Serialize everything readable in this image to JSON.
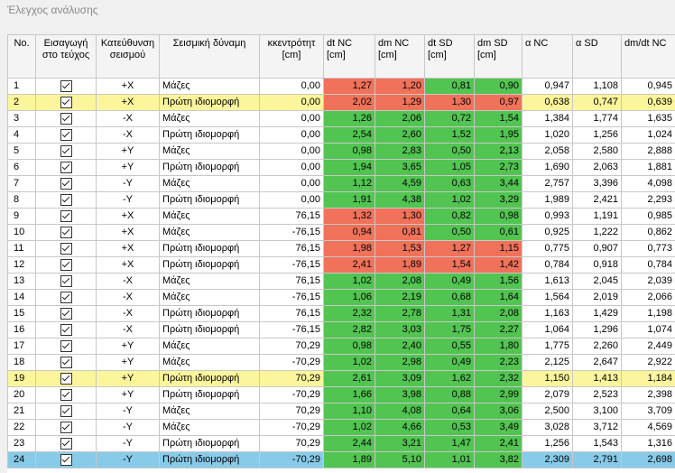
{
  "window_title": "Έλεγχος ανάλυσης",
  "colors": {
    "green": "#52c451",
    "red": "#f0725a",
    "highlight_yellow": "#fbf59b",
    "selected_blue": "#88cbe8"
  },
  "columns": [
    "No.",
    "Εισαγωγή στο τεύχος",
    "Κατεύθυνση σεισμού",
    "Σεισμική δύναμη",
    "κκεντρότητ [cm]",
    "dt NC [cm]",
    "dm NC [cm]",
    "dt SD [cm]",
    "dm SD [cm]",
    "α NC",
    "α SD",
    "dm/dt NC"
  ],
  "rows": [
    {
      "no": "1",
      "checked": true,
      "dir": "+X",
      "force": "Μάζες",
      "ecc": "0,00",
      "dt_nc": "1,27",
      "dm_nc": "1,20",
      "dt_sd": "0,81",
      "dm_sd": "0,90",
      "a_nc": "0,947",
      "a_sd": "1,108",
      "ratio": "0,945",
      "colors": [
        "r",
        "r",
        "g",
        "g"
      ],
      "row": ""
    },
    {
      "no": "2",
      "checked": true,
      "dir": "+X",
      "force": "Πρώτη ιδιομορφή",
      "ecc": "0,00",
      "dt_nc": "2,02",
      "dm_nc": "1,29",
      "dt_sd": "1,30",
      "dm_sd": "0,97",
      "a_nc": "0,638",
      "a_sd": "0,747",
      "ratio": "0,639",
      "colors": [
        "r",
        "r",
        "r",
        "r"
      ],
      "row": "yellow"
    },
    {
      "no": "3",
      "checked": true,
      "dir": "-X",
      "force": "Μάζες",
      "ecc": "0,00",
      "dt_nc": "1,26",
      "dm_nc": "2,06",
      "dt_sd": "0,72",
      "dm_sd": "1,54",
      "a_nc": "1,384",
      "a_sd": "1,774",
      "ratio": "1,635",
      "colors": [
        "g",
        "g",
        "g",
        "g"
      ],
      "row": ""
    },
    {
      "no": "4",
      "checked": true,
      "dir": "-X",
      "force": "Πρώτη ιδιομορφή",
      "ecc": "0,00",
      "dt_nc": "2,54",
      "dm_nc": "2,60",
      "dt_sd": "1,52",
      "dm_sd": "1,95",
      "a_nc": "1,020",
      "a_sd": "1,256",
      "ratio": "1,024",
      "colors": [
        "g",
        "g",
        "g",
        "g"
      ],
      "row": ""
    },
    {
      "no": "5",
      "checked": true,
      "dir": "+Y",
      "force": "Μάζες",
      "ecc": "0,00",
      "dt_nc": "0,98",
      "dm_nc": "2,83",
      "dt_sd": "0,50",
      "dm_sd": "2,13",
      "a_nc": "2,058",
      "a_sd": "2,580",
      "ratio": "2,888",
      "colors": [
        "g",
        "g",
        "g",
        "g"
      ],
      "row": ""
    },
    {
      "no": "6",
      "checked": true,
      "dir": "+Y",
      "force": "Πρώτη ιδιομορφή",
      "ecc": "0,00",
      "dt_nc": "1,94",
      "dm_nc": "3,65",
      "dt_sd": "1,05",
      "dm_sd": "2,73",
      "a_nc": "1,690",
      "a_sd": "2,063",
      "ratio": "1,881",
      "colors": [
        "g",
        "g",
        "g",
        "g"
      ],
      "row": ""
    },
    {
      "no": "7",
      "checked": true,
      "dir": "-Y",
      "force": "Μάζες",
      "ecc": "0,00",
      "dt_nc": "1,12",
      "dm_nc": "4,59",
      "dt_sd": "0,63",
      "dm_sd": "3,44",
      "a_nc": "2,757",
      "a_sd": "3,396",
      "ratio": "4,098",
      "colors": [
        "g",
        "g",
        "g",
        "g"
      ],
      "row": ""
    },
    {
      "no": "8",
      "checked": true,
      "dir": "-Y",
      "force": "Πρώτη ιδιομορφή",
      "ecc": "0,00",
      "dt_nc": "1,91",
      "dm_nc": "4,38",
      "dt_sd": "1,02",
      "dm_sd": "3,29",
      "a_nc": "1,989",
      "a_sd": "2,421",
      "ratio": "2,293",
      "colors": [
        "g",
        "g",
        "g",
        "g"
      ],
      "row": ""
    },
    {
      "no": "9",
      "checked": true,
      "dir": "+X",
      "force": "Μάζες",
      "ecc": "76,15",
      "dt_nc": "1,32",
      "dm_nc": "1,30",
      "dt_sd": "0,82",
      "dm_sd": "0,98",
      "a_nc": "0,993",
      "a_sd": "1,191",
      "ratio": "0,985",
      "colors": [
        "r",
        "r",
        "g",
        "g"
      ],
      "row": ""
    },
    {
      "no": "10",
      "checked": true,
      "dir": "+X",
      "force": "Μάζες",
      "ecc": "-76,15",
      "dt_nc": "0,94",
      "dm_nc": "0,81",
      "dt_sd": "0,50",
      "dm_sd": "0,61",
      "a_nc": "0,925",
      "a_sd": "1,222",
      "ratio": "0,862",
      "colors": [
        "r",
        "r",
        "g",
        "g"
      ],
      "row": ""
    },
    {
      "no": "11",
      "checked": true,
      "dir": "+X",
      "force": "Πρώτη ιδιομορφή",
      "ecc": "76,15",
      "dt_nc": "1,98",
      "dm_nc": "1,53",
      "dt_sd": "1,27",
      "dm_sd": "1,15",
      "a_nc": "0,775",
      "a_sd": "0,907",
      "ratio": "0,773",
      "colors": [
        "r",
        "r",
        "r",
        "r"
      ],
      "row": ""
    },
    {
      "no": "12",
      "checked": true,
      "dir": "+X",
      "force": "Πρώτη ιδιομορφή",
      "ecc": "-76,15",
      "dt_nc": "2,41",
      "dm_nc": "1,89",
      "dt_sd": "1,54",
      "dm_sd": "1,42",
      "a_nc": "0,784",
      "a_sd": "0,918",
      "ratio": "0,784",
      "colors": [
        "r",
        "r",
        "r",
        "r"
      ],
      "row": ""
    },
    {
      "no": "13",
      "checked": true,
      "dir": "-X",
      "force": "Μάζες",
      "ecc": "76,15",
      "dt_nc": "1,02",
      "dm_nc": "2,08",
      "dt_sd": "0,49",
      "dm_sd": "1,56",
      "a_nc": "1,613",
      "a_sd": "2,045",
      "ratio": "2,039",
      "colors": [
        "g",
        "g",
        "g",
        "g"
      ],
      "row": ""
    },
    {
      "no": "14",
      "checked": true,
      "dir": "-X",
      "force": "Μάζες",
      "ecc": "-76,15",
      "dt_nc": "1,06",
      "dm_nc": "2,19",
      "dt_sd": "0,68",
      "dm_sd": "1,64",
      "a_nc": "1,564",
      "a_sd": "2,019",
      "ratio": "2,066",
      "colors": [
        "g",
        "g",
        "g",
        "g"
      ],
      "row": ""
    },
    {
      "no": "15",
      "checked": true,
      "dir": "-X",
      "force": "Πρώτη ιδιομορφή",
      "ecc": "76,15",
      "dt_nc": "2,32",
      "dm_nc": "2,78",
      "dt_sd": "1,31",
      "dm_sd": "2,08",
      "a_nc": "1,163",
      "a_sd": "1,429",
      "ratio": "1,198",
      "colors": [
        "g",
        "g",
        "g",
        "g"
      ],
      "row": ""
    },
    {
      "no": "16",
      "checked": true,
      "dir": "-X",
      "force": "Πρώτη ιδιομορφή",
      "ecc": "-76,15",
      "dt_nc": "2,82",
      "dm_nc": "3,03",
      "dt_sd": "1,75",
      "dm_sd": "2,27",
      "a_nc": "1,064",
      "a_sd": "1,296",
      "ratio": "1,074",
      "colors": [
        "g",
        "g",
        "g",
        "g"
      ],
      "row": ""
    },
    {
      "no": "17",
      "checked": true,
      "dir": "+Y",
      "force": "Μάζες",
      "ecc": "70,29",
      "dt_nc": "0,98",
      "dm_nc": "2,40",
      "dt_sd": "0,55",
      "dm_sd": "1,80",
      "a_nc": "1,775",
      "a_sd": "2,260",
      "ratio": "2,449",
      "colors": [
        "g",
        "g",
        "g",
        "g"
      ],
      "row": ""
    },
    {
      "no": "18",
      "checked": true,
      "dir": "+Y",
      "force": "Μάζες",
      "ecc": "-70,29",
      "dt_nc": "1,02",
      "dm_nc": "2,98",
      "dt_sd": "0,49",
      "dm_sd": "2,23",
      "a_nc": "2,125",
      "a_sd": "2,647",
      "ratio": "2,922",
      "colors": [
        "g",
        "g",
        "g",
        "g"
      ],
      "row": ""
    },
    {
      "no": "19",
      "checked": true,
      "dir": "+Y",
      "force": "Πρώτη ιδιομορφή",
      "ecc": "70,29",
      "dt_nc": "2,61",
      "dm_nc": "3,09",
      "dt_sd": "1,62",
      "dm_sd": "2,32",
      "a_nc": "1,150",
      "a_sd": "1,413",
      "ratio": "1,184",
      "colors": [
        "g",
        "g",
        "g",
        "g"
      ],
      "row": "yellow"
    },
    {
      "no": "20",
      "checked": true,
      "dir": "+Y",
      "force": "Πρώτη ιδιομορφή",
      "ecc": "-70,29",
      "dt_nc": "1,66",
      "dm_nc": "3,98",
      "dt_sd": "0,88",
      "dm_sd": "2,99",
      "a_nc": "2,079",
      "a_sd": "2,523",
      "ratio": "2,398",
      "colors": [
        "g",
        "g",
        "g",
        "g"
      ],
      "row": ""
    },
    {
      "no": "21",
      "checked": true,
      "dir": "-Y",
      "force": "Μάζες",
      "ecc": "70,29",
      "dt_nc": "1,10",
      "dm_nc": "4,08",
      "dt_sd": "0,64",
      "dm_sd": "3,06",
      "a_nc": "2,500",
      "a_sd": "3,100",
      "ratio": "3,709",
      "colors": [
        "g",
        "g",
        "g",
        "g"
      ],
      "row": ""
    },
    {
      "no": "22",
      "checked": true,
      "dir": "-Y",
      "force": "Μάζες",
      "ecc": "-70,29",
      "dt_nc": "1,02",
      "dm_nc": "4,66",
      "dt_sd": "0,53",
      "dm_sd": "3,49",
      "a_nc": "3,028",
      "a_sd": "3,712",
      "ratio": "4,569",
      "colors": [
        "g",
        "g",
        "g",
        "g"
      ],
      "row": ""
    },
    {
      "no": "23",
      "checked": true,
      "dir": "-Y",
      "force": "Πρώτη ιδιομορφή",
      "ecc": "70,29",
      "dt_nc": "2,44",
      "dm_nc": "3,21",
      "dt_sd": "1,47",
      "dm_sd": "2,41",
      "a_nc": "1,256",
      "a_sd": "1,543",
      "ratio": "1,316",
      "colors": [
        "g",
        "g",
        "g",
        "g"
      ],
      "row": ""
    },
    {
      "no": "24",
      "checked": true,
      "dir": "-Y",
      "force": "Πρώτη ιδιομορφή",
      "ecc": "-70,29",
      "dt_nc": "1,89",
      "dm_nc": "5,10",
      "dt_sd": "1,01",
      "dm_sd": "3,82",
      "a_nc": "2,309",
      "a_sd": "2,791",
      "ratio": "2,698",
      "colors": [
        "g",
        "g",
        "g",
        "g"
      ],
      "row": "blue"
    }
  ]
}
